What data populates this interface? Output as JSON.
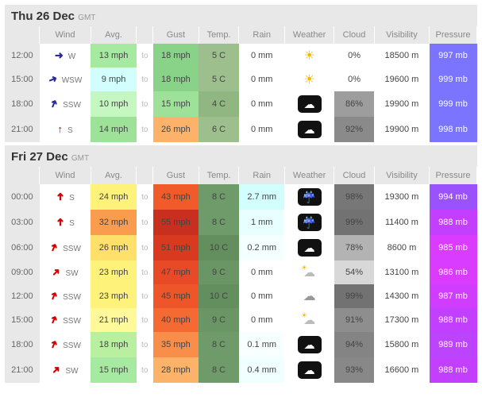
{
  "columns": {
    "wind": "Wind",
    "avg": "Avg.",
    "gust": "Gust",
    "temp": "Temp.",
    "rain": "Rain",
    "weather": "Weather",
    "cloud": "Cloud",
    "visibility": "Visibility",
    "pressure": "Pressure"
  },
  "to_label": "to",
  "tz": "GMT",
  "weather_icons": {
    "sun": {
      "glyph": "☀",
      "class": "wicon-sun"
    },
    "cloud_box": {
      "glyph": "☁",
      "class": "wicon-box"
    },
    "rain_box": {
      "glyph": "☔",
      "class": "wicon-box"
    },
    "cloud": {
      "glyph": "☁",
      "class": "wicon-cloud"
    },
    "suncloud": {
      "glyph": "☁",
      "class": "wicon-suncloud"
    }
  },
  "wind_arrows": {
    "W": {
      "glyph": "➜",
      "rot": 0,
      "color": "#2a2a9a"
    },
    "WSW": {
      "glyph": "➜",
      "rot": 22,
      "color": "#2a2a9a"
    },
    "SSW": {
      "glyph": "➜",
      "rot": 67,
      "color": "#2a2a9a"
    },
    "S": {
      "glyph": "↑",
      "rot": 0,
      "color": "#d40000"
    },
    "S_r": {
      "glyph": "➜",
      "rot": 90,
      "color": "#d40000"
    },
    "SSW_r": {
      "glyph": "➜",
      "rot": 67,
      "color": "#d40000"
    },
    "SW_r": {
      "glyph": "➜",
      "rot": 45,
      "color": "#d40000"
    }
  },
  "days": [
    {
      "title": "Thu 26 Dec",
      "rows": [
        {
          "time": "12:00",
          "wind_dir": "W",
          "arrow": "W",
          "avg": "13 mph",
          "avg_bg": "#a6e9a0",
          "gust": "18 mph",
          "gust_bg": "#89d388",
          "temp": "5 C",
          "temp_bg": "#9cbf8d",
          "rain": "0 mm",
          "rain_bg": "#ffffff",
          "weather": "sun",
          "cloud": "0%",
          "cloud_bg": "#ffffff",
          "vis": "18500 m",
          "press": "997 mb",
          "press_bg": "#7a74ff"
        },
        {
          "time": "15:00",
          "wind_dir": "WSW",
          "arrow": "WSW",
          "avg": "9 mph",
          "avg_bg": "#d2fefe",
          "gust": "18 mph",
          "gust_bg": "#89d388",
          "temp": "5 C",
          "temp_bg": "#9cbf8d",
          "rain": "0 mm",
          "rain_bg": "#ffffff",
          "weather": "sun",
          "cloud": "0%",
          "cloud_bg": "#ffffff",
          "vis": "19600 m",
          "press": "999 mb",
          "press_bg": "#7a74ff"
        },
        {
          "time": "18:00",
          "wind_dir": "SSW",
          "arrow": "SSW",
          "avg": "10 mph",
          "avg_bg": "#c5f7c1",
          "gust": "15 mph",
          "gust_bg": "#9ee29a",
          "temp": "4 C",
          "temp_bg": "#90b681",
          "rain": "0 mm",
          "rain_bg": "#ffffff",
          "weather": "cloud_box",
          "cloud": "86%",
          "cloud_bg": "#9d9d9d",
          "vis": "19900 m",
          "press": "999 mb",
          "press_bg": "#7a74ff"
        },
        {
          "time": "21:00",
          "wind_dir": "S",
          "arrow": "S",
          "avg": "14 mph",
          "avg_bg": "#9ee29a",
          "gust": "26 mph",
          "gust_bg": "#fcb268",
          "temp": "6 C",
          "temp_bg": "#9cbf8d",
          "rain": "0 mm",
          "rain_bg": "#ffffff",
          "weather": "cloud_box",
          "cloud": "92%",
          "cloud_bg": "#8a8a8a",
          "vis": "19900 m",
          "press": "998 mb",
          "press_bg": "#7a74ff"
        }
      ]
    },
    {
      "title": "Fri 27 Dec",
      "rows": [
        {
          "time": "00:00",
          "wind_dir": "S",
          "arrow": "S_r",
          "avg": "24 mph",
          "avg_bg": "#fff27a",
          "gust": "43 mph",
          "gust_bg": "#f15a29",
          "temp": "8 C",
          "temp_bg": "#6f9a6a",
          "rain": "2.7 mm",
          "rain_bg": "#d2fefe",
          "weather": "rain_box",
          "cloud": "98%",
          "cloud_bg": "#777777",
          "vis": "19300 m",
          "press": "994 mb",
          "press_bg": "#9a52ff"
        },
        {
          "time": "03:00",
          "wind_dir": "S",
          "arrow": "S_r",
          "avg": "32 mph",
          "avg_bg": "#f99c4d",
          "gust": "55 mph",
          "gust_bg": "#c92f1f",
          "temp": "8 C",
          "temp_bg": "#6f9a6a",
          "rain": "1 mm",
          "rain_bg": "#e8ffff",
          "weather": "rain_box",
          "cloud": "99%",
          "cloud_bg": "#727272",
          "vis": "11400 m",
          "press": "988 mb",
          "press_bg": "#c33fff"
        },
        {
          "time": "06:00",
          "wind_dir": "SSW",
          "arrow": "SSW_r",
          "avg": "26 mph",
          "avg_bg": "#ffe06a",
          "gust": "51 mph",
          "gust_bg": "#d8391f",
          "temp": "10 C",
          "temp_bg": "#638f5e",
          "rain": "0.2 mm",
          "rain_bg": "#f4ffff",
          "weather": "cloud_box",
          "cloud": "78%",
          "cloud_bg": "#b3b3b3",
          "vis": "8600 m",
          "press": "985 mb",
          "press_bg": "#d93bff"
        },
        {
          "time": "09:00",
          "wind_dir": "SW",
          "arrow": "SW_r",
          "avg": "23 mph",
          "avg_bg": "#fff27a",
          "gust": "47 mph",
          "gust_bg": "#e84a27",
          "temp": "9 C",
          "temp_bg": "#6a9565",
          "rain": "0 mm",
          "rain_bg": "#ffffff",
          "weather": "suncloud",
          "cloud": "54%",
          "cloud_bg": "#d8d8d8",
          "vis": "13100 m",
          "press": "986 mb",
          "press_bg": "#d93bff"
        },
        {
          "time": "12:00",
          "wind_dir": "SSW",
          "arrow": "SSW_r",
          "avg": "23 mph",
          "avg_bg": "#fff27a",
          "gust": "45 mph",
          "gust_bg": "#ee5528",
          "temp": "10 C",
          "temp_bg": "#638f5e",
          "rain": "0 mm",
          "rain_bg": "#ffffff",
          "weather": "cloud",
          "cloud": "99%",
          "cloud_bg": "#727272",
          "vis": "14300 m",
          "press": "987 mb",
          "press_bg": "#d13dff"
        },
        {
          "time": "15:00",
          "wind_dir": "SSW",
          "arrow": "SSW_r",
          "avg": "21 mph",
          "avg_bg": "#fff99a",
          "gust": "40 mph",
          "gust_bg": "#f46a32",
          "temp": "9 C",
          "temp_bg": "#6a9565",
          "rain": "0 mm",
          "rain_bg": "#ffffff",
          "weather": "suncloud",
          "cloud": "91%",
          "cloud_bg": "#8e8e8e",
          "vis": "17300 m",
          "press": "988 mb",
          "press_bg": "#c33fff"
        },
        {
          "time": "18:00",
          "wind_dir": "SSW",
          "arrow": "SSW_r",
          "avg": "18 mph",
          "avg_bg": "#b9f0a0",
          "gust": "35 mph",
          "gust_bg": "#f98d4a",
          "temp": "8 C",
          "temp_bg": "#6f9a6a",
          "rain": "0.1 mm",
          "rain_bg": "#f8ffff",
          "weather": "cloud_box",
          "cloud": "94%",
          "cloud_bg": "#848484",
          "vis": "15800 m",
          "press": "989 mb",
          "press_bg": "#bd44ff"
        },
        {
          "time": "21:00",
          "wind_dir": "SW",
          "arrow": "SW_r",
          "avg": "15 mph",
          "avg_bg": "#a6e9a0",
          "gust": "28 mph",
          "gust_bg": "#fcb268",
          "temp": "8 C",
          "temp_bg": "#6f9a6a",
          "rain": "0.4 mm",
          "rain_bg": "#f0ffff",
          "weather": "cloud_box",
          "cloud": "93%",
          "cloud_bg": "#888888",
          "vis": "16600 m",
          "press": "988 mb",
          "press_bg": "#c33fff"
        }
      ]
    }
  ]
}
